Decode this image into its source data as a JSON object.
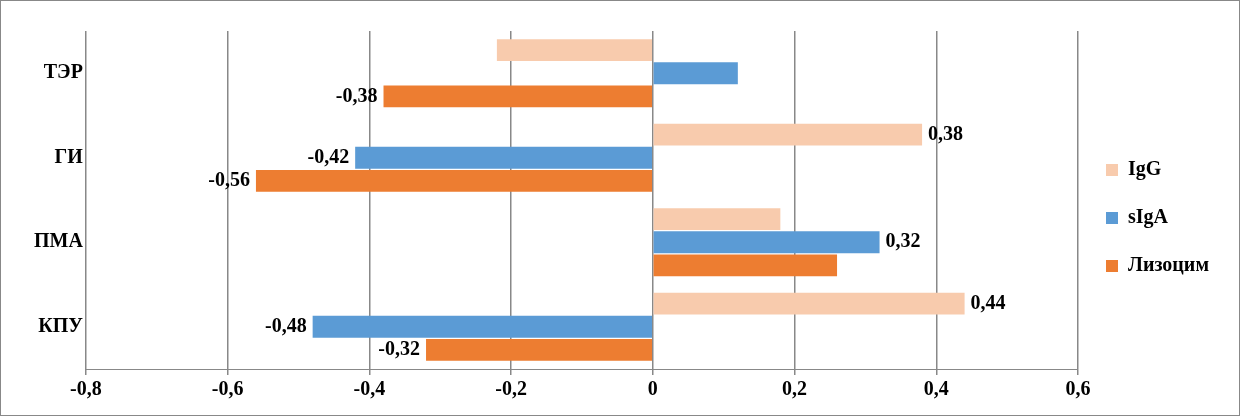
{
  "chart_data": {
    "type": "bar",
    "orientation": "horizontal",
    "categories": [
      "ТЭР",
      "ГИ",
      "ПМА",
      "КПУ"
    ],
    "series": [
      {
        "name": "IgG",
        "color": "#f8cbad",
        "values": [
          -0.22,
          0.38,
          0.18,
          0.44
        ],
        "value_labels": [
          null,
          "0,38",
          null,
          "0,44"
        ]
      },
      {
        "name": "sIgA",
        "color": "#5b9bd5",
        "values": [
          0.12,
          -0.42,
          0.32,
          -0.48
        ],
        "value_labels": [
          null,
          "-0,42",
          "0,32",
          "-0,48"
        ]
      },
      {
        "name": "Лизоцим",
        "color": "#ed7d31",
        "values": [
          -0.38,
          -0.56,
          0.26,
          -0.32
        ],
        "value_labels": [
          "-0,38",
          "-0,56",
          null,
          "-0,32"
        ]
      }
    ],
    "xlim": [
      -0.8,
      0.6
    ],
    "xticks": [
      {
        "value": -0.8,
        "label": "-0,8"
      },
      {
        "value": -0.6,
        "label": "-0,6"
      },
      {
        "value": -0.4,
        "label": "-0,4"
      },
      {
        "value": -0.2,
        "label": "-0,2"
      },
      0,
      {
        "value": 0.2,
        "label": "0,2"
      },
      {
        "value": 0.4,
        "label": "0,4"
      },
      {
        "value": 0.6,
        "label": "0,6"
      }
    ],
    "grid": "x",
    "legend": "right"
  }
}
